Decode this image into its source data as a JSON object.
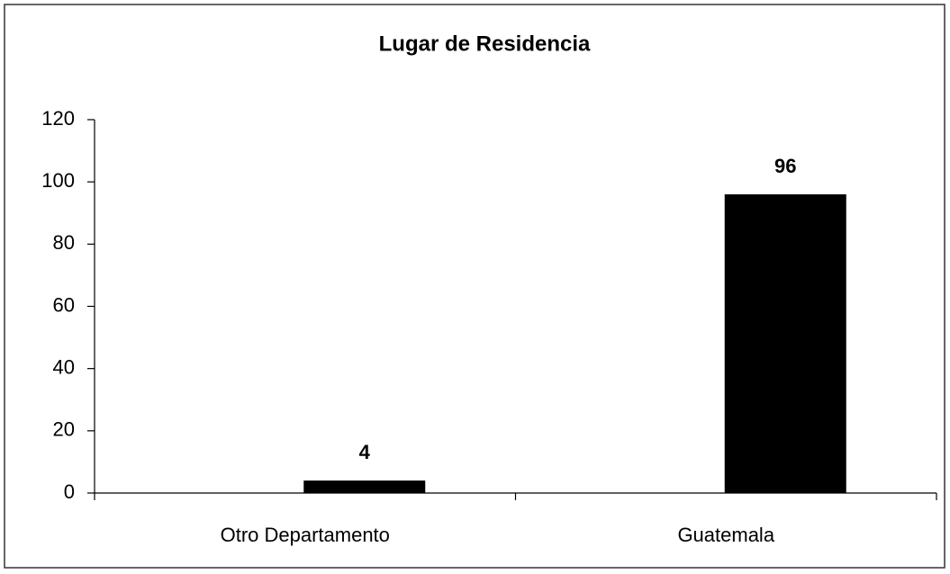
{
  "chart_data": {
    "type": "bar",
    "title": "Lugar de Residencia",
    "categories": [
      "Otro Departamento",
      "Guatemala"
    ],
    "values": [
      4,
      96
    ],
    "color": "#000000",
    "ylim": [
      0,
      120
    ],
    "yticks": [
      0,
      20,
      40,
      60,
      80,
      100,
      120
    ],
    "grid": false
  }
}
